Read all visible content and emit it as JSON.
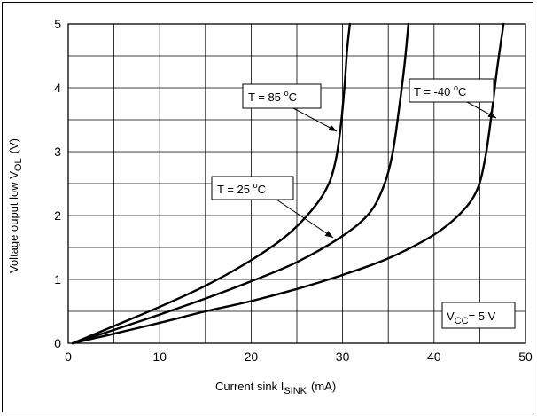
{
  "chart_data": {
    "type": "line",
    "title": "",
    "xlabel": {
      "main": "Current sink I",
      "sub": "SINK",
      "unit": "(mA)"
    },
    "ylabel": {
      "main": "Voltage ouput low V",
      "sub": "OL",
      "unit": "(V)"
    },
    "xlim": [
      0,
      50
    ],
    "ylim": [
      0,
      5
    ],
    "x_ticks": [
      "0",
      "10",
      "20",
      "30",
      "40",
      "50"
    ],
    "y_ticks": [
      "0",
      "1",
      "2",
      "3",
      "4",
      "5"
    ],
    "grid": true,
    "series": [
      {
        "name": "T = 85 °C",
        "label_main": "T = 85 ",
        "label_unit": "C",
        "x": [
          0.5,
          5,
          10,
          15,
          20,
          24,
          27,
          28.5,
          29.3,
          29.8,
          30.2,
          30.5,
          30.8
        ],
        "y": [
          0,
          0.27,
          0.57,
          0.9,
          1.3,
          1.7,
          2.15,
          2.5,
          2.9,
          3.4,
          4.0,
          4.6,
          5.0
        ]
      },
      {
        "name": "T = 25 °C",
        "label_main": "T = 25 ",
        "label_unit": "C",
        "x": [
          0.5,
          5,
          10,
          15,
          20,
          25,
          30,
          33,
          34.6,
          35.5,
          36.2,
          36.8,
          37.2
        ],
        "y": [
          0,
          0.21,
          0.45,
          0.7,
          0.97,
          1.27,
          1.68,
          2.05,
          2.5,
          3.0,
          3.7,
          4.4,
          5.0
        ]
      },
      {
        "name": "T = -40 °C",
        "label_main": "T = -40 ",
        "label_unit": "C",
        "x": [
          0.5,
          5,
          10,
          15,
          20,
          25,
          30,
          35,
          40,
          43,
          44.7,
          45.6,
          46.3,
          46.9,
          47.6
        ],
        "y": [
          0,
          0.15,
          0.32,
          0.5,
          0.66,
          0.85,
          1.07,
          1.33,
          1.7,
          2.05,
          2.4,
          2.9,
          3.6,
          4.3,
          5.0
        ]
      }
    ],
    "annotations": [
      {
        "text_main": "V",
        "text_sub": "CC",
        "text_rest": "= 5 V"
      }
    ]
  }
}
